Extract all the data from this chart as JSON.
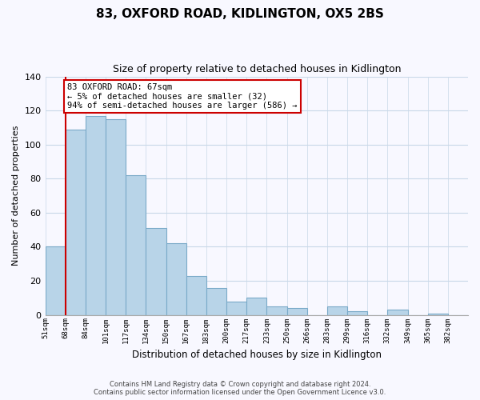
{
  "title": "83, OXFORD ROAD, KIDLINGTON, OX5 2BS",
  "subtitle": "Size of property relative to detached houses in Kidlington",
  "xlabel": "Distribution of detached houses by size in Kidlington",
  "ylabel": "Number of detached properties",
  "bins": [
    "51sqm",
    "68sqm",
    "84sqm",
    "101sqm",
    "117sqm",
    "134sqm",
    "150sqm",
    "167sqm",
    "183sqm",
    "200sqm",
    "217sqm",
    "233sqm",
    "250sqm",
    "266sqm",
    "283sqm",
    "299sqm",
    "316sqm",
    "332sqm",
    "349sqm",
    "365sqm",
    "382sqm"
  ],
  "values": [
    40,
    109,
    117,
    115,
    82,
    51,
    42,
    23,
    16,
    8,
    10,
    5,
    4,
    0,
    5,
    2,
    0,
    3,
    0,
    1,
    0
  ],
  "bar_color": "#b8d4e8",
  "bar_edge_color": "#7aaac8",
  "subject_line_color": "#cc0000",
  "subject_bin_index": 1,
  "annotation_line1": "83 OXFORD ROAD: 67sqm",
  "annotation_line2": "← 5% of detached houses are smaller (32)",
  "annotation_line3": "94% of semi-detached houses are larger (586) →",
  "annotation_box_color": "#ffffff",
  "annotation_box_edge": "#cc0000",
  "ylim": [
    0,
    140
  ],
  "yticks": [
    0,
    20,
    40,
    60,
    80,
    100,
    120,
    140
  ],
  "footer_line1": "Contains HM Land Registry data © Crown copyright and database right 2024.",
  "footer_line2": "Contains public sector information licensed under the Open Government Licence v3.0.",
  "background_color": "#f8f8ff",
  "grid_color": "#c8d8e8"
}
